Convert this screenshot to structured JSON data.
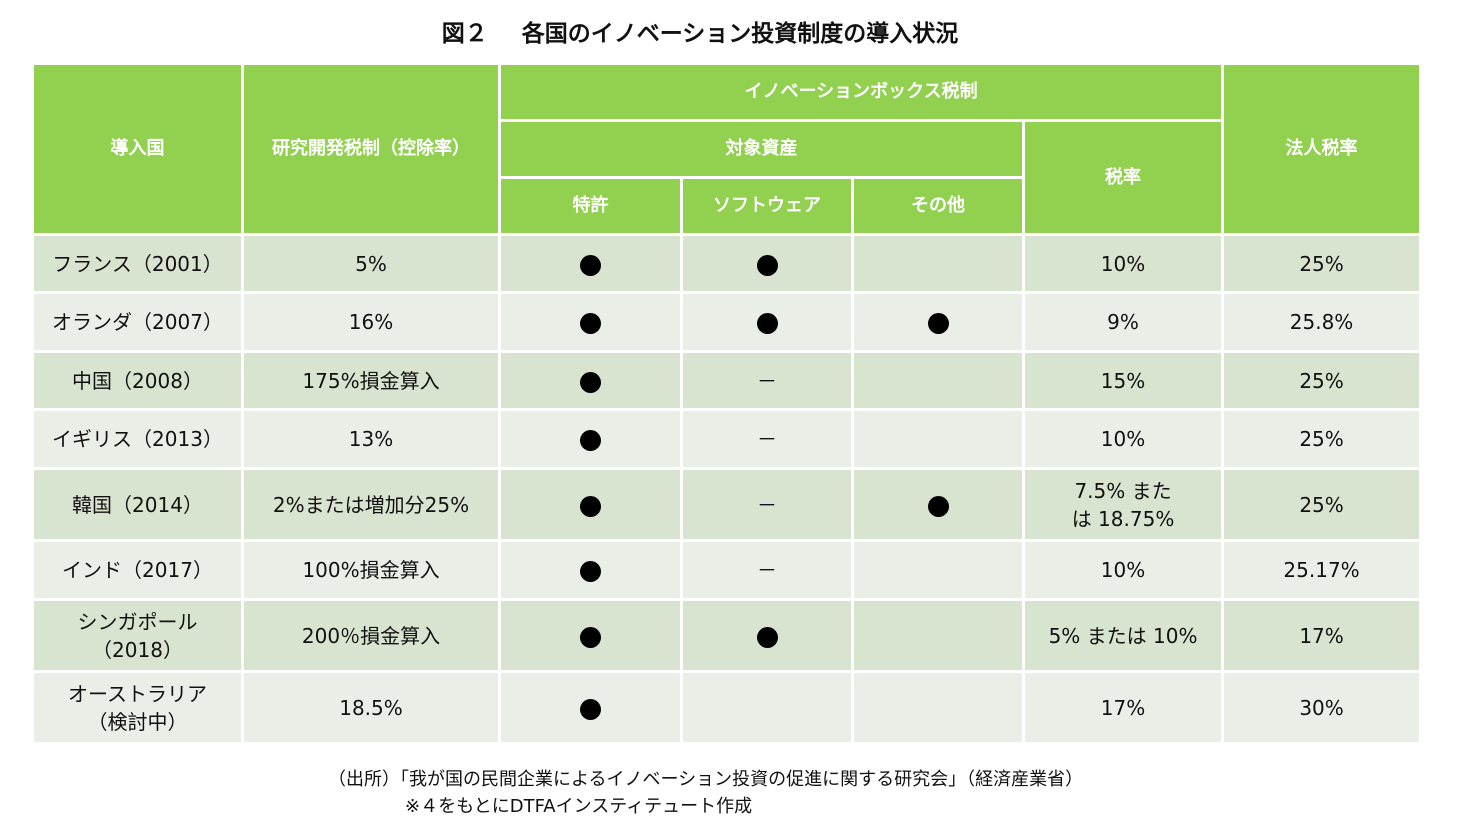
{
  "title": {
    "figure": "図２",
    "text": "各国のイノベーション投資制度の導入状況"
  },
  "header": {
    "country": "導入国",
    "rd_tax": "研究開発税制（控除率）",
    "ip_box": "イノベーションボックス税制",
    "assets": "対象資産",
    "patent": "特許",
    "software": "ソフトウェア",
    "other": "その他",
    "tax_rate": "税率",
    "corporate_tax": "法人税率"
  },
  "rows": [
    {
      "country": "フランス（2001）",
      "rd": "5%",
      "patent": true,
      "software": "dot",
      "other": "",
      "rate": "10%",
      "corp": "25%"
    },
    {
      "country": "オランダ（2007）",
      "rd": "16%",
      "patent": true,
      "software": "dot",
      "other": "dot",
      "rate": "9%",
      "corp": "25.8%"
    },
    {
      "country": "中国（2008）",
      "rd": "175%損金算入",
      "patent": true,
      "software": "－",
      "other": "",
      "rate": "15%",
      "corp": "25%"
    },
    {
      "country": "イギリス（2013）",
      "rd": "13%",
      "patent": true,
      "software": "－",
      "other": "",
      "rate": "10%",
      "corp": "25%"
    },
    {
      "country": "韓国（2014）",
      "rd": "2%または増加分25%",
      "patent": true,
      "software": "－",
      "other": "dot",
      "rate": "7.5% または 18.75%",
      "corp": "25%"
    },
    {
      "country": "インド（2017）",
      "rd": "100%損金算入",
      "patent": true,
      "software": "－",
      "other": "",
      "rate": "10%",
      "corp": "25.17%"
    },
    {
      "country": "シンガポール（2018）",
      "rd": "200％損金算入",
      "patent": true,
      "software": "dot",
      "other": "",
      "rate": "5% または 10%",
      "corp": "17%"
    },
    {
      "country": "オーストラリア（検討中）",
      "rd": "18.5%",
      "patent": true,
      "software": "",
      "other": "",
      "rate": "17%",
      "corp": "30%"
    }
  ],
  "notes": {
    "source": "（出所）「我が国の民間企業によるイノベーション投資の促進に関する研究会」（経済産業省）",
    "basis": "※４をもとにDTFAインスティテュート作成"
  }
}
